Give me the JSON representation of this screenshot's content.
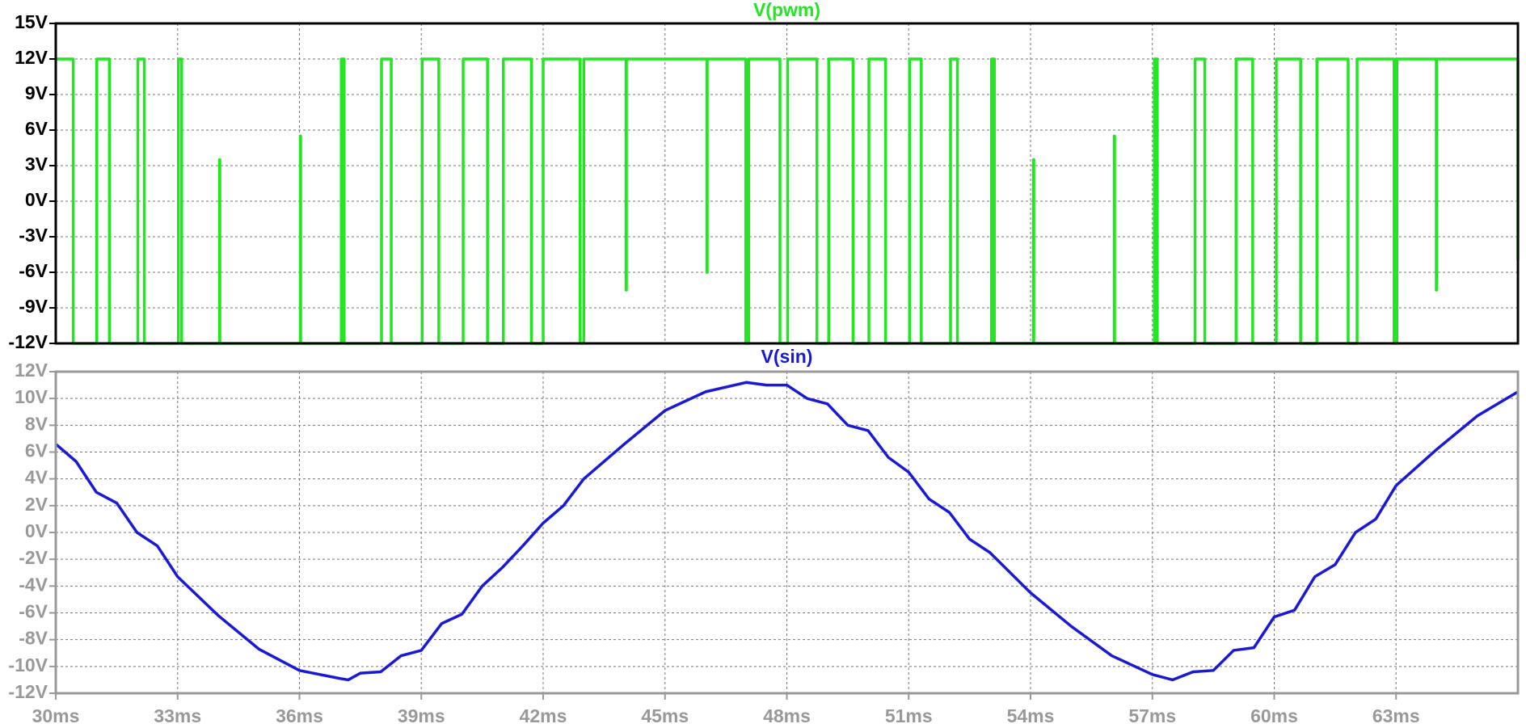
{
  "chart_data": [
    {
      "type": "line",
      "title": "V(pwm)",
      "color": "#22e622",
      "frame_color": "#000000",
      "label_color": "#000000",
      "xlim": [
        30,
        66
      ],
      "ylim": [
        -12,
        15
      ],
      "grid": true,
      "xtick_labels": false,
      "xticks": [
        30,
        33,
        36,
        39,
        42,
        45,
        48,
        51,
        54,
        57,
        60,
        63
      ],
      "yticks": [
        {
          "value": -12,
          "label": "-12V"
        },
        {
          "value": -9,
          "label": "-9V"
        },
        {
          "value": -6,
          "label": "-6V"
        },
        {
          "value": -3,
          "label": "-3V"
        },
        {
          "value": 0,
          "label": "0V"
        },
        {
          "value": 3,
          "label": "3V"
        },
        {
          "value": 6,
          "label": "6V"
        },
        {
          "value": 9,
          "label": "9V"
        },
        {
          "value": 12,
          "label": "12V"
        },
        {
          "value": 15,
          "label": "15V"
        }
      ],
      "x": [
        30,
        30.43,
        30.43,
        31.01,
        31.01,
        31.32,
        31.32,
        32.02,
        32.02,
        32.18,
        32.18,
        33.02,
        33.02,
        33.1,
        33.1,
        34.03,
        34.03,
        34.04,
        34.04,
        36.02,
        36.02,
        36.03,
        36.03,
        37.03,
        37.03,
        37.1,
        37.1,
        38.02,
        38.02,
        38.26,
        38.26,
        39.02,
        39.02,
        39.43,
        39.43,
        40.03,
        40.03,
        40.63,
        40.63,
        41.02,
        41.02,
        41.71,
        41.71,
        42.0,
        42.0,
        42.91,
        42.91,
        43.0,
        43.0,
        44.04,
        44.04,
        44.05,
        44.05,
        46.03,
        46.03,
        46.04,
        46.04,
        46.99,
        46.99,
        47.06,
        47.06,
        47.83,
        47.83,
        48.02,
        48.02,
        48.74,
        48.74,
        49.03,
        49.03,
        49.63,
        49.63,
        50.02,
        50.02,
        50.43,
        50.43,
        51.02,
        51.02,
        51.31,
        51.31,
        52.03,
        52.03,
        52.2,
        52.2,
        53.04,
        53.04,
        53.11,
        53.11,
        54.07,
        54.07,
        54.08,
        54.08,
        56.06,
        56.06,
        56.07,
        56.07,
        57.05,
        57.05,
        57.12,
        57.12,
        58.05,
        58.05,
        58.29,
        58.29,
        59.06,
        59.06,
        59.47,
        59.47,
        60.05,
        60.05,
        60.65,
        60.65,
        61.05,
        61.05,
        61.82,
        61.82,
        62.04,
        62.04,
        62.95,
        62.95,
        63.02,
        63.02,
        63.99,
        63.99,
        64.0,
        64.0,
        66,
        66
      ],
      "values": [
        12,
        12,
        -12,
        -12,
        12,
        12,
        -12,
        -12,
        12,
        12,
        -12,
        -12,
        12,
        12,
        -12,
        -12,
        3.5,
        3.5,
        -12,
        -12,
        5.5,
        5.5,
        -12,
        -12,
        12,
        12,
        -12,
        -12,
        12,
        12,
        -12,
        -12,
        12,
        12,
        -12,
        -12,
        12,
        12,
        -12,
        -12,
        12,
        12,
        -12,
        -12,
        12,
        12,
        -12,
        -12,
        12,
        12,
        -7.5,
        -7.5,
        12,
        12,
        -6,
        -6,
        12,
        12,
        -12,
        -12,
        12,
        12,
        -12,
        -12,
        12,
        12,
        -12,
        -12,
        12,
        12,
        -12,
        -12,
        12,
        12,
        -12,
        -12,
        12,
        12,
        -12,
        -12,
        12,
        12,
        -12,
        -12,
        12,
        12,
        -12,
        -12,
        3.5,
        3.5,
        -12,
        -12,
        5.5,
        5.5,
        -12,
        -12,
        12,
        12,
        -12,
        -12,
        12,
        12,
        -12,
        -12,
        12,
        12,
        -12,
        -12,
        12,
        12,
        -12,
        -12,
        12,
        12,
        -12,
        -12,
        12,
        12,
        -12,
        -12,
        12,
        12,
        -7.5,
        -7.5,
        12,
        12,
        -5
      ]
    },
    {
      "type": "line",
      "title": "V(sin)",
      "color": "#1a1ad6",
      "frame_color": "#999999",
      "label_color": "#999999",
      "xlim": [
        30,
        66
      ],
      "ylim": [
        -12,
        12
      ],
      "grid": true,
      "xtick_labels": true,
      "xticks": [
        {
          "value": 30,
          "label": "30ms"
        },
        {
          "value": 33,
          "label": "33ms"
        },
        {
          "value": 36,
          "label": "36ms"
        },
        {
          "value": 39,
          "label": "39ms"
        },
        {
          "value": 42,
          "label": "42ms"
        },
        {
          "value": 45,
          "label": "45ms"
        },
        {
          "value": 48,
          "label": "48ms"
        },
        {
          "value": 51,
          "label": "51ms"
        },
        {
          "value": 54,
          "label": "54ms"
        },
        {
          "value": 57,
          "label": "57ms"
        },
        {
          "value": 60,
          "label": "60ms"
        },
        {
          "value": 63,
          "label": "63ms"
        }
      ],
      "yticks": [
        {
          "value": -12,
          "label": "-12V"
        },
        {
          "value": -10,
          "label": "-10V"
        },
        {
          "value": -8,
          "label": "-8V"
        },
        {
          "value": -6,
          "label": "-6V"
        },
        {
          "value": -4,
          "label": "-4V"
        },
        {
          "value": -2,
          "label": "-2V"
        },
        {
          "value": 0,
          "label": "0V"
        },
        {
          "value": 2,
          "label": "2V"
        },
        {
          "value": 4,
          "label": "4V"
        },
        {
          "value": 6,
          "label": "6V"
        },
        {
          "value": 8,
          "label": "8V"
        },
        {
          "value": 10,
          "label": "10V"
        },
        {
          "value": 12,
          "label": "12V"
        }
      ],
      "x": [
        30,
        30.5,
        31,
        31.5,
        32,
        32.5,
        33,
        34,
        35,
        36,
        37,
        37.2,
        37.5,
        38,
        38.5,
        39,
        39.5,
        40,
        40.5,
        41,
        41.5,
        42,
        42.5,
        43,
        44,
        45,
        46,
        47,
        47.5,
        48,
        48.5,
        49,
        49.5,
        50,
        50.5,
        51,
        51.5,
        52,
        52.5,
        53,
        54,
        55,
        56,
        57,
        57.5,
        58,
        58.5,
        59,
        59.5,
        60,
        60.5,
        61,
        61.5,
        62,
        62.5,
        63,
        64,
        65,
        66
      ],
      "values": [
        6.6,
        5.3,
        3.0,
        2.2,
        0.0,
        -1.0,
        -3.3,
        -6.2,
        -8.7,
        -10.3,
        -10.9,
        -11.0,
        -10.5,
        -10.4,
        -9.2,
        -8.8,
        -6.8,
        -6.1,
        -4.0,
        -2.6,
        -1.0,
        0.7,
        2.0,
        4.0,
        6.6,
        9.1,
        10.5,
        11.2,
        11.0,
        11.0,
        10.0,
        9.6,
        8.0,
        7.6,
        5.6,
        4.5,
        2.5,
        1.5,
        -0.5,
        -1.5,
        -4.5,
        -7.0,
        -9.2,
        -10.6,
        -11.0,
        -10.4,
        -10.3,
        -8.8,
        -8.6,
        -6.3,
        -5.8,
        -3.3,
        -2.4,
        0.0,
        1.0,
        3.5,
        6.2,
        8.7,
        10.5
      ]
    }
  ]
}
